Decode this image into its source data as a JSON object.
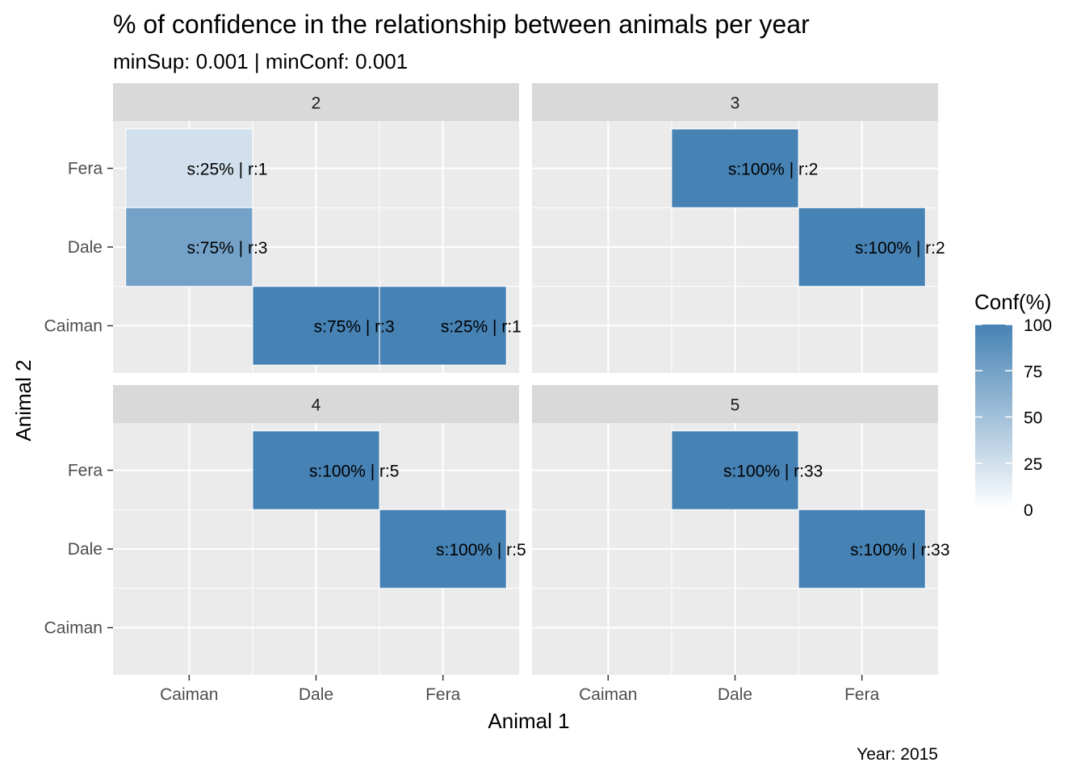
{
  "chart_data": {
    "type": "heatmap",
    "title": "% of confidence in the relationship between animals per year",
    "subtitle": "minSup: 0.001 | minConf: 0.001",
    "caption": "Year: 2015",
    "xlabel": "Animal 1",
    "ylabel": "Animal 2",
    "x_categories": [
      "Caiman",
      "Dale",
      "Fera"
    ],
    "y_categories": [
      "Caiman",
      "Dale",
      "Fera"
    ],
    "legend": {
      "title": "Conf(%)",
      "range": [
        0,
        100
      ],
      "ticks": [
        0,
        25,
        50,
        75,
        100
      ],
      "low_color": "#ffffff",
      "high_color": "#4682b4",
      "placement": "right"
    },
    "panel_background": "#ebebeb",
    "strip_background": "#d9d9d9",
    "panels": [
      {
        "label": "2",
        "cells": [
          {
            "x": "Caiman",
            "y": "Fera",
            "conf": 25,
            "label": "s:25% | r:1"
          },
          {
            "x": "Caiman",
            "y": "Dale",
            "conf": 75,
            "label": "s:75% | r:3"
          },
          {
            "x": "Dale",
            "y": "Caiman",
            "conf": 100,
            "label": "s:75% | r:3"
          },
          {
            "x": "Fera",
            "y": "Caiman",
            "conf": 100,
            "label": "s:25% | r:1"
          }
        ]
      },
      {
        "label": "3",
        "cells": [
          {
            "x": "Dale",
            "y": "Fera",
            "conf": 100,
            "label": "s:100% | r:2"
          },
          {
            "x": "Fera",
            "y": "Dale",
            "conf": 100,
            "label": "s:100% | r:2"
          }
        ]
      },
      {
        "label": "4",
        "cells": [
          {
            "x": "Dale",
            "y": "Fera",
            "conf": 100,
            "label": "s:100% | r:5"
          },
          {
            "x": "Fera",
            "y": "Dale",
            "conf": 100,
            "label": "s:100% | r:5"
          }
        ]
      },
      {
        "label": "5",
        "cells": [
          {
            "x": "Dale",
            "y": "Fera",
            "conf": 100,
            "label": "s:100% | r:33"
          },
          {
            "x": "Fera",
            "y": "Dale",
            "conf": 100,
            "label": "s:100% | r:33"
          }
        ]
      }
    ]
  }
}
